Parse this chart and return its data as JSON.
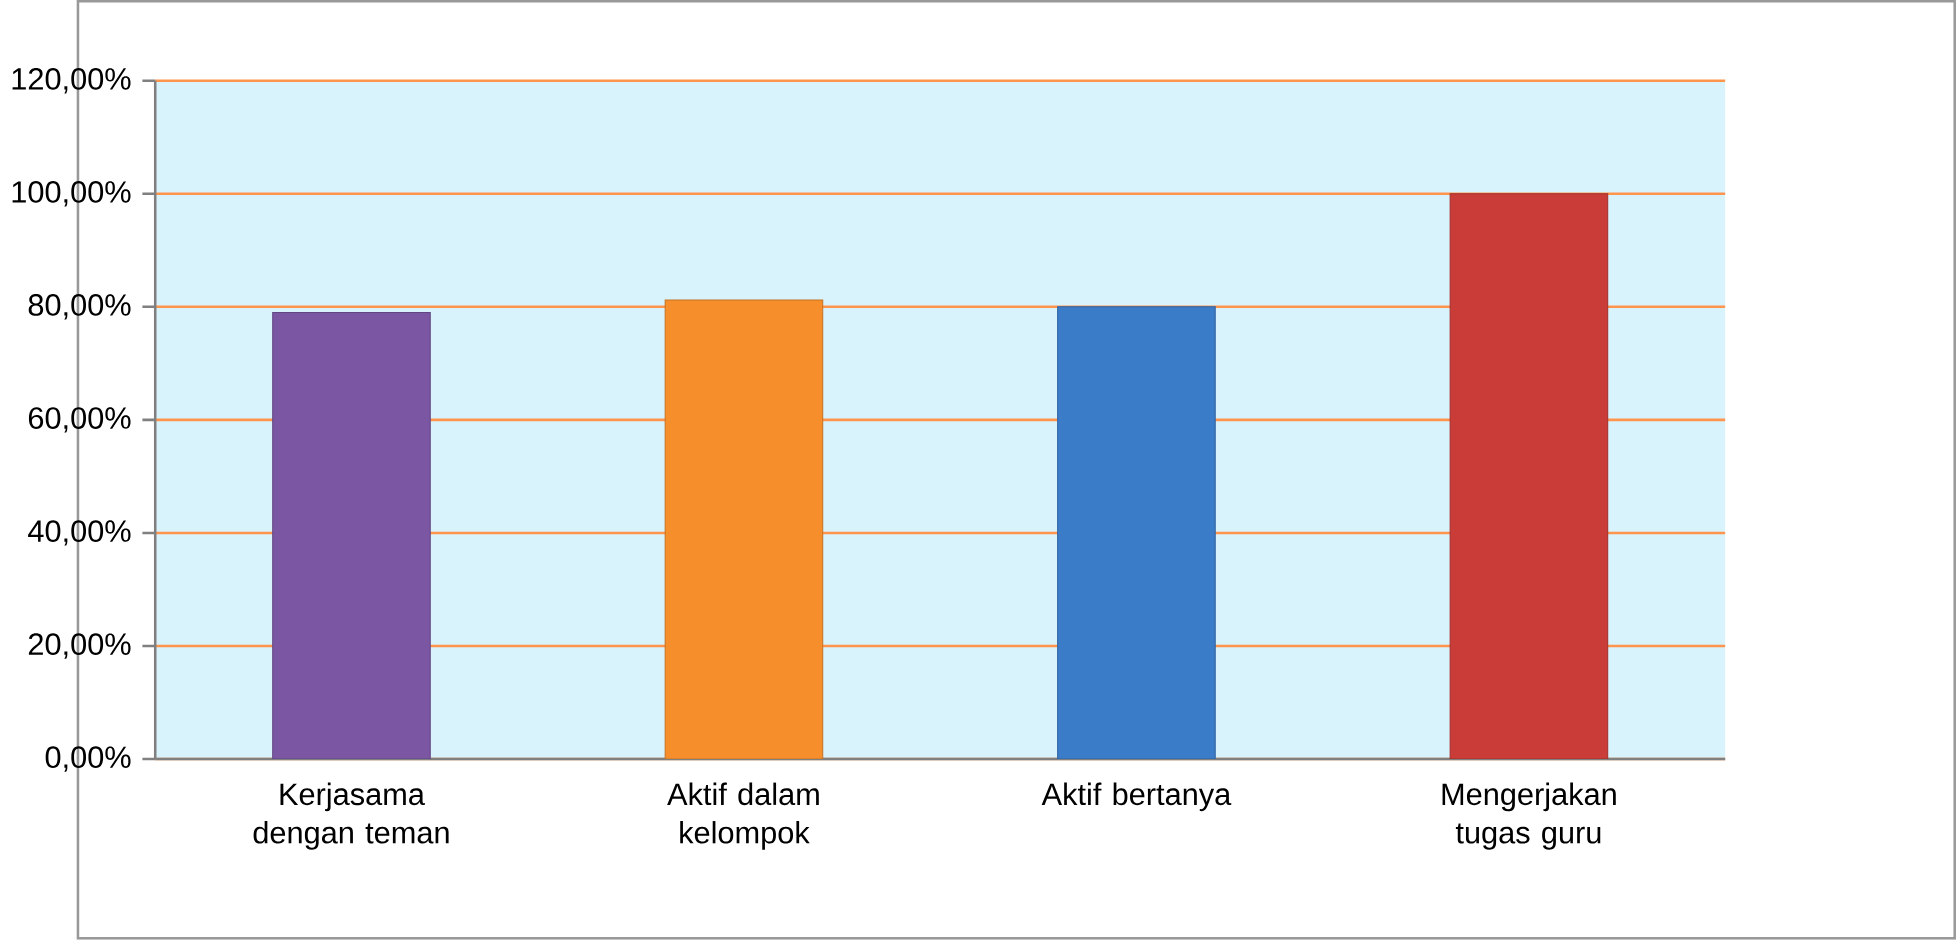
{
  "chart_data": {
    "type": "bar",
    "categories": [
      "Kerjasama dengan teman",
      "Aktif dalam kelompok",
      "Aktif bertanya",
      "Mengerjakan tugas guru"
    ],
    "values": [
      79,
      81.2,
      80,
      100
    ],
    "colors": [
      "#7b57a3",
      "#f68f2b",
      "#3b7cc8",
      "#c93c37"
    ],
    "ylim": [
      0,
      120
    ],
    "yticks": [
      {
        "value": 0,
        "label": "0,00%"
      },
      {
        "value": 20,
        "label": "20,00%"
      },
      {
        "value": 40,
        "label": "40,00%"
      },
      {
        "value": 60,
        "label": "60,00%"
      },
      {
        "value": 80,
        "label": "80,00%"
      },
      {
        "value": 100,
        "label": "100,00%"
      },
      {
        "value": 120,
        "label": "120,00%"
      }
    ],
    "grid": "y"
  }
}
